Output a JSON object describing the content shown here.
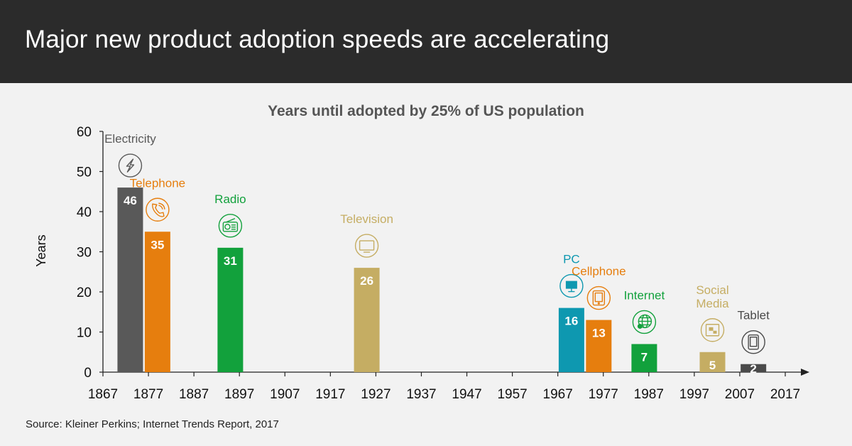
{
  "header": {
    "title": "Major new product adoption speeds are accelerating"
  },
  "source": "Source: Kleiner Perkins; Internet Trends Report, 2017",
  "colors": {
    "header_bg": "#2b2b2b",
    "gray": "#595959",
    "orange": "#e67e0e",
    "green": "#12a13c",
    "tan": "#c5ad63",
    "teal": "#0e98b0",
    "dark_gray": "#4a4a4a"
  },
  "chart_data": {
    "type": "bar",
    "title": "Years until adopted by 25% of US population",
    "xlabel": "",
    "ylabel": "Years",
    "ylim": [
      0,
      60
    ],
    "yticks": [
      0,
      10,
      20,
      30,
      40,
      50,
      60
    ],
    "xlim": [
      1867,
      2017
    ],
    "xticks": [
      1867,
      1877,
      1887,
      1897,
      1907,
      1917,
      1927,
      1937,
      1947,
      1957,
      1967,
      1977,
      1987,
      1997,
      2007,
      2017
    ],
    "legend": "none",
    "series": [
      {
        "name": "Electricity",
        "year": 1873,
        "value": 46,
        "value_label": "46",
        "color": "#595959",
        "icon": "lightning-icon"
      },
      {
        "name": "Telephone",
        "year": 1879,
        "value": 35,
        "value_label": "35",
        "color": "#e67e0e",
        "icon": "phone-icon"
      },
      {
        "name": "Radio",
        "year": 1895,
        "value": 31,
        "value_label": "31",
        "color": "#12a13c",
        "icon": "radio-icon"
      },
      {
        "name": "Television",
        "year": 1925,
        "value": 26,
        "value_label": "26",
        "color": "#c5ad63",
        "icon": "tv-icon"
      },
      {
        "name": "PC",
        "year": 1970,
        "value": 16,
        "value_label": "16",
        "color": "#0e98b0",
        "icon": "monitor-icon"
      },
      {
        "name": "Cellphone",
        "year": 1976,
        "value": 13,
        "value_label": "13",
        "color": "#e67e0e",
        "icon": "cellphone-icon"
      },
      {
        "name": "Internet",
        "year": 1986,
        "value": 7,
        "value_label": "7",
        "color": "#12a13c",
        "icon": "globe-icon"
      },
      {
        "name": "Social Media",
        "name_lines": [
          "Social",
          "Media"
        ],
        "year": 2001,
        "value": 5,
        "value_label": "5",
        "color": "#c5ad63",
        "icon": "social-media-icon"
      },
      {
        "name": "Tablet",
        "year": 2010,
        "value": 2,
        "value_label": "2",
        "color": "#4a4a4a",
        "icon": "tablet-icon"
      }
    ]
  }
}
